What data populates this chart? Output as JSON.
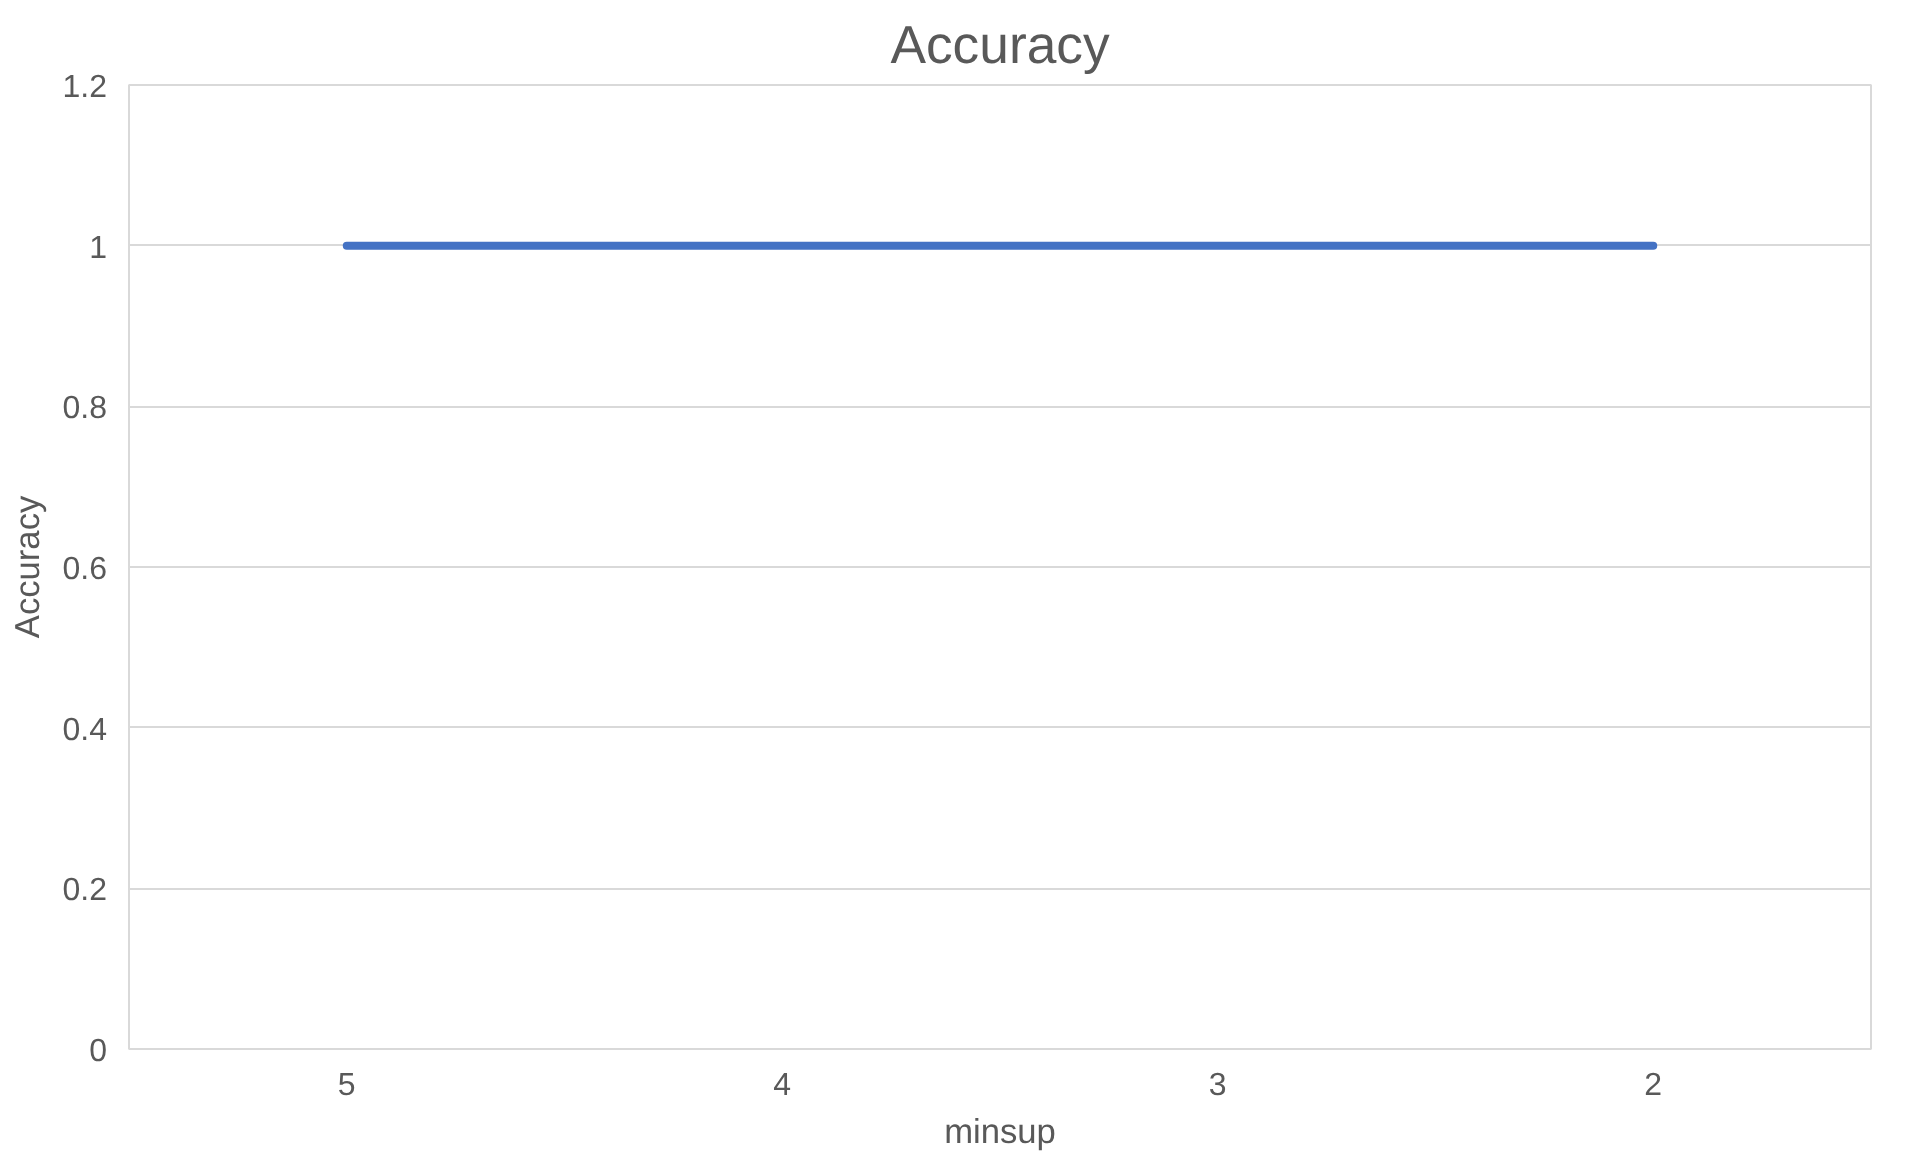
{
  "chart_data": {
    "type": "line",
    "title": "Accuracy",
    "xlabel": "minsup",
    "ylabel": "Accuracy",
    "categories": [
      "5",
      "4",
      "3",
      "2"
    ],
    "series": [
      {
        "color": "#4472c4",
        "values": [
          1,
          1,
          1,
          1
        ]
      }
    ],
    "ylim": [
      0,
      1.2
    ],
    "yticks": [
      0,
      0.2,
      0.4,
      0.6,
      0.8,
      1,
      1.2
    ],
    "grid": "y",
    "marker": "none",
    "line_style": "solid"
  }
}
